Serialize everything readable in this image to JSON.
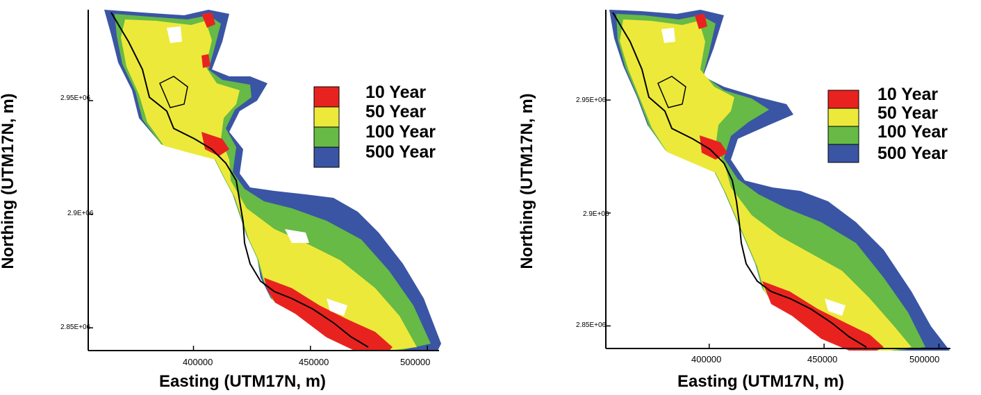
{
  "chart_data": [
    {
      "type": "map",
      "xlabel": "Easting (UTM17N, m)",
      "ylabel": "Northing (UTM17N, m)",
      "xlim": [
        355000,
        505000
      ],
      "ylim": [
        2840000,
        2990000
      ],
      "xticks": [
        {
          "value": 400000,
          "label": "400000"
        },
        {
          "value": 450000,
          "label": "450000"
        },
        {
          "value": 500000,
          "label": "500000"
        }
      ],
      "yticks": [
        {
          "value": 2850000,
          "label": "2.85E+06"
        },
        {
          "value": 2900000,
          "label": "2.9E+06"
        },
        {
          "value": 2950000,
          "label": "2.95E+06"
        }
      ],
      "legend": [
        {
          "label": "10 Year",
          "color": "#e8231f"
        },
        {
          "label": "50 Year",
          "color": "#ece93b"
        },
        {
          "label": "100 Year",
          "color": "#66ba45"
        },
        {
          "label": "500 Year",
          "color": "#3a55a4"
        }
      ]
    },
    {
      "type": "map",
      "xlabel": "Easting (UTM17N, m)",
      "ylabel": "Northing (UTM17N, m)",
      "xlim": [
        355000,
        505000
      ],
      "ylim": [
        2840000,
        2990000
      ],
      "xticks": [
        {
          "value": 400000,
          "label": "400000"
        },
        {
          "value": 450000,
          "label": "450000"
        },
        {
          "value": 500000,
          "label": "500000"
        }
      ],
      "yticks": [
        {
          "value": 2850000,
          "label": "2.85E+06"
        },
        {
          "value": 2900000,
          "label": "2.9E+06"
        },
        {
          "value": 2950000,
          "label": "2.95E+06"
        }
      ],
      "legend": [
        {
          "label": "10 Year",
          "color": "#e8231f"
        },
        {
          "label": "50 Year",
          "color": "#ece93b"
        },
        {
          "label": "100 Year",
          "color": "#66ba45"
        },
        {
          "label": "500 Year",
          "color": "#3a55a4"
        }
      ]
    }
  ]
}
